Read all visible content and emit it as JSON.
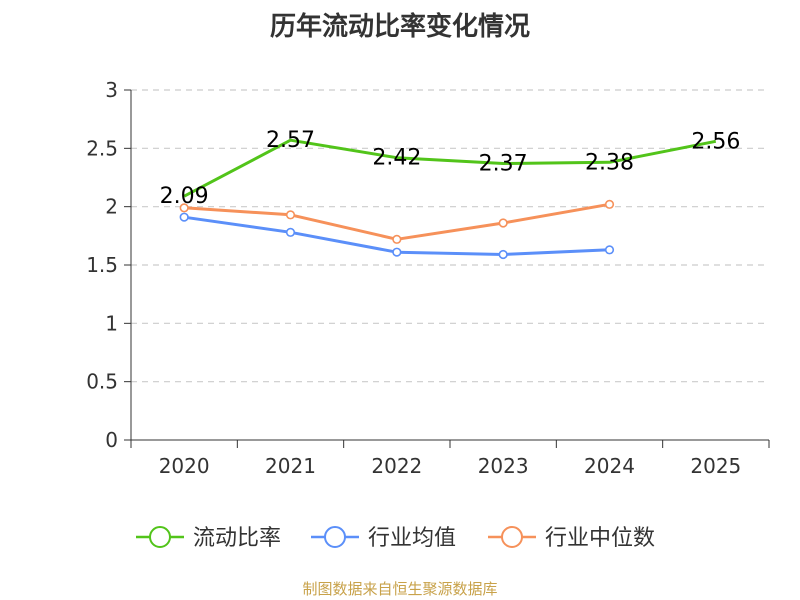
{
  "chart_data": {
    "type": "line",
    "title": "历年流动比率变化情况",
    "categories": [
      "2020",
      "2021",
      "2022",
      "2023",
      "2024",
      "2025"
    ],
    "ylim": [
      0,
      3
    ],
    "yticks": [
      0,
      0.5,
      1,
      1.5,
      2,
      2.5,
      3
    ],
    "ytick_labels": [
      "0",
      "0.5",
      "1",
      "1.5",
      "2",
      "2.5",
      "3"
    ],
    "grid": true,
    "legend_position": "bottom",
    "series": [
      {
        "name": "流动比率",
        "color": "#52c41a",
        "values": [
          2.09,
          2.57,
          2.42,
          2.37,
          2.38,
          2.56
        ],
        "labels": [
          "2.09",
          "2.57",
          "2.42",
          "2.37",
          "2.38",
          "2.56"
        ]
      },
      {
        "name": "行业均值",
        "color": "#5b8ff9",
        "values": [
          1.91,
          1.78,
          1.61,
          1.59,
          1.63,
          null
        ]
      },
      {
        "name": "行业中位数",
        "color": "#f6915a",
        "values": [
          1.99,
          1.93,
          1.72,
          1.86,
          2.02,
          null
        ]
      }
    ]
  },
  "source_text": "制图数据来自恒生聚源数据库"
}
